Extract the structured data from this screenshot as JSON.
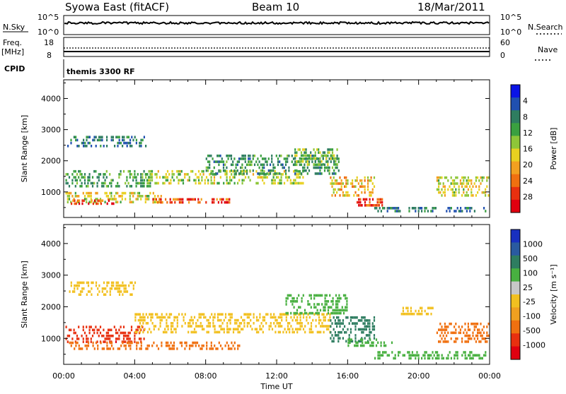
{
  "header": {
    "station": "Syowa East (fitACF)",
    "beam": "Beam 10",
    "date": "18/Mar/2011"
  },
  "strips": {
    "nsky_label": "N.Sky",
    "nsky_ticks": [
      "10^5",
      "10^0"
    ],
    "nsearch_label": "N.Search",
    "nsearch_ticks": [
      "10^5",
      "10^0"
    ],
    "freq_label_1": "Freq.",
    "freq_label_2": "[MHz]",
    "freq_ticks": [
      "18",
      "8"
    ],
    "nave_label": "Nave",
    "nave_ticks": [
      "60",
      "0"
    ],
    "cpid_label": "CPID",
    "cpid_value": "themis 3300 RF"
  },
  "chart_data": [
    {
      "type": "heatmap",
      "title": "",
      "quantity": "Power",
      "ylabel": "Slant Range [km]",
      "xlabel": "Time UT",
      "x_ticks": [
        "00:00",
        "04:00",
        "08:00",
        "12:00",
        "16:00",
        "20:00",
        "00:00"
      ],
      "y_ticks": [
        "1000",
        "2000",
        "3000",
        "4000"
      ],
      "ylim": [
        180,
        4600
      ],
      "colorbar": {
        "label": "Power [dB]",
        "ticks": [
          "4",
          "8",
          "12",
          "16",
          "20",
          "24",
          "28"
        ],
        "colors": [
          "#0a14e6",
          "#2050b0",
          "#2e7d60",
          "#3aa040",
          "#8ec638",
          "#e8d020",
          "#f2a020",
          "#f07010",
          "#e83010",
          "#e00010"
        ]
      },
      "regions": [
        {
          "t0": 0.2,
          "t1": 4.6,
          "r0": 2500,
          "r1": 2800,
          "v": 9
        },
        {
          "t0": 0.1,
          "t1": 5.0,
          "r0": 1200,
          "r1": 1700,
          "v": 12
        },
        {
          "t0": 0.1,
          "t1": 5.5,
          "r0": 700,
          "r1": 1000,
          "v": 18
        },
        {
          "t0": 0.4,
          "t1": 3.0,
          "r0": 620,
          "r1": 760,
          "v": 26
        },
        {
          "t0": 5.0,
          "t1": 9.5,
          "r0": 620,
          "r1": 800,
          "v": 27
        },
        {
          "t0": 4.5,
          "t1": 13.5,
          "r0": 1300,
          "r1": 1700,
          "v": 16
        },
        {
          "t0": 8.0,
          "t1": 15.5,
          "r0": 1600,
          "r1": 2200,
          "v": 11
        },
        {
          "t0": 13.0,
          "t1": 15.5,
          "r0": 1900,
          "r1": 2400,
          "v": 14
        },
        {
          "t0": 15.0,
          "t1": 17.5,
          "r0": 900,
          "r1": 1500,
          "v": 20
        },
        {
          "t0": 16.5,
          "t1": 18.0,
          "r0": 600,
          "r1": 800,
          "v": 29
        },
        {
          "t0": 17.5,
          "t1": 23.8,
          "r0": 350,
          "r1": 520,
          "v": 9
        },
        {
          "t0": 21.0,
          "t1": 23.9,
          "r0": 900,
          "r1": 1500,
          "v": 18
        }
      ]
    },
    {
      "type": "heatmap",
      "title": "",
      "quantity": "Velocity",
      "ylabel": "Slant Range [km]",
      "xlabel": "Time UT",
      "x_ticks": [
        "00:00",
        "04:00",
        "08:00",
        "12:00",
        "16:00",
        "20:00",
        "00:00"
      ],
      "y_ticks": [
        "1000",
        "2000",
        "3000",
        "4000"
      ],
      "ylim": [
        180,
        4600
      ],
      "colorbar": {
        "label": "Velocity [m s⁻¹]",
        "ticks": [
          "1000",
          "500",
          "100",
          "25",
          "-25",
          "-100",
          "-500",
          "-1000"
        ],
        "colors": [
          "#1830c0",
          "#2a5aa0",
          "#2e7d60",
          "#48b040",
          "#c8c8c8",
          "#f2c020",
          "#f0a020",
          "#f07010",
          "#e83010",
          "#e00010"
        ]
      },
      "regions": [
        {
          "t0": 0.3,
          "t1": 4.0,
          "r0": 2400,
          "r1": 2800,
          "v": 0
        },
        {
          "t0": 0.1,
          "t1": 4.5,
          "r0": 900,
          "r1": 1400,
          "v": -600
        },
        {
          "t0": 0.3,
          "t1": 10.0,
          "r0": 650,
          "r1": 900,
          "v": -150
        },
        {
          "t0": 4.0,
          "t1": 15.0,
          "r0": 1200,
          "r1": 1800,
          "v": 0
        },
        {
          "t0": 12.5,
          "t1": 16.0,
          "r0": 1800,
          "r1": 2400,
          "v": 120
        },
        {
          "t0": 15.0,
          "t1": 17.5,
          "r0": 900,
          "r1": 1700,
          "v": 600
        },
        {
          "t0": 16.0,
          "t1": 18.5,
          "r0": 800,
          "r1": 1000,
          "v": 150
        },
        {
          "t0": 17.5,
          "t1": 23.8,
          "r0": 350,
          "r1": 600,
          "v": 80
        },
        {
          "t0": 19.0,
          "t1": 21.0,
          "r0": 1800,
          "r1": 2000,
          "v": 0
        },
        {
          "t0": 21.0,
          "t1": 23.9,
          "r0": 900,
          "r1": 1500,
          "v": -150
        }
      ]
    }
  ]
}
